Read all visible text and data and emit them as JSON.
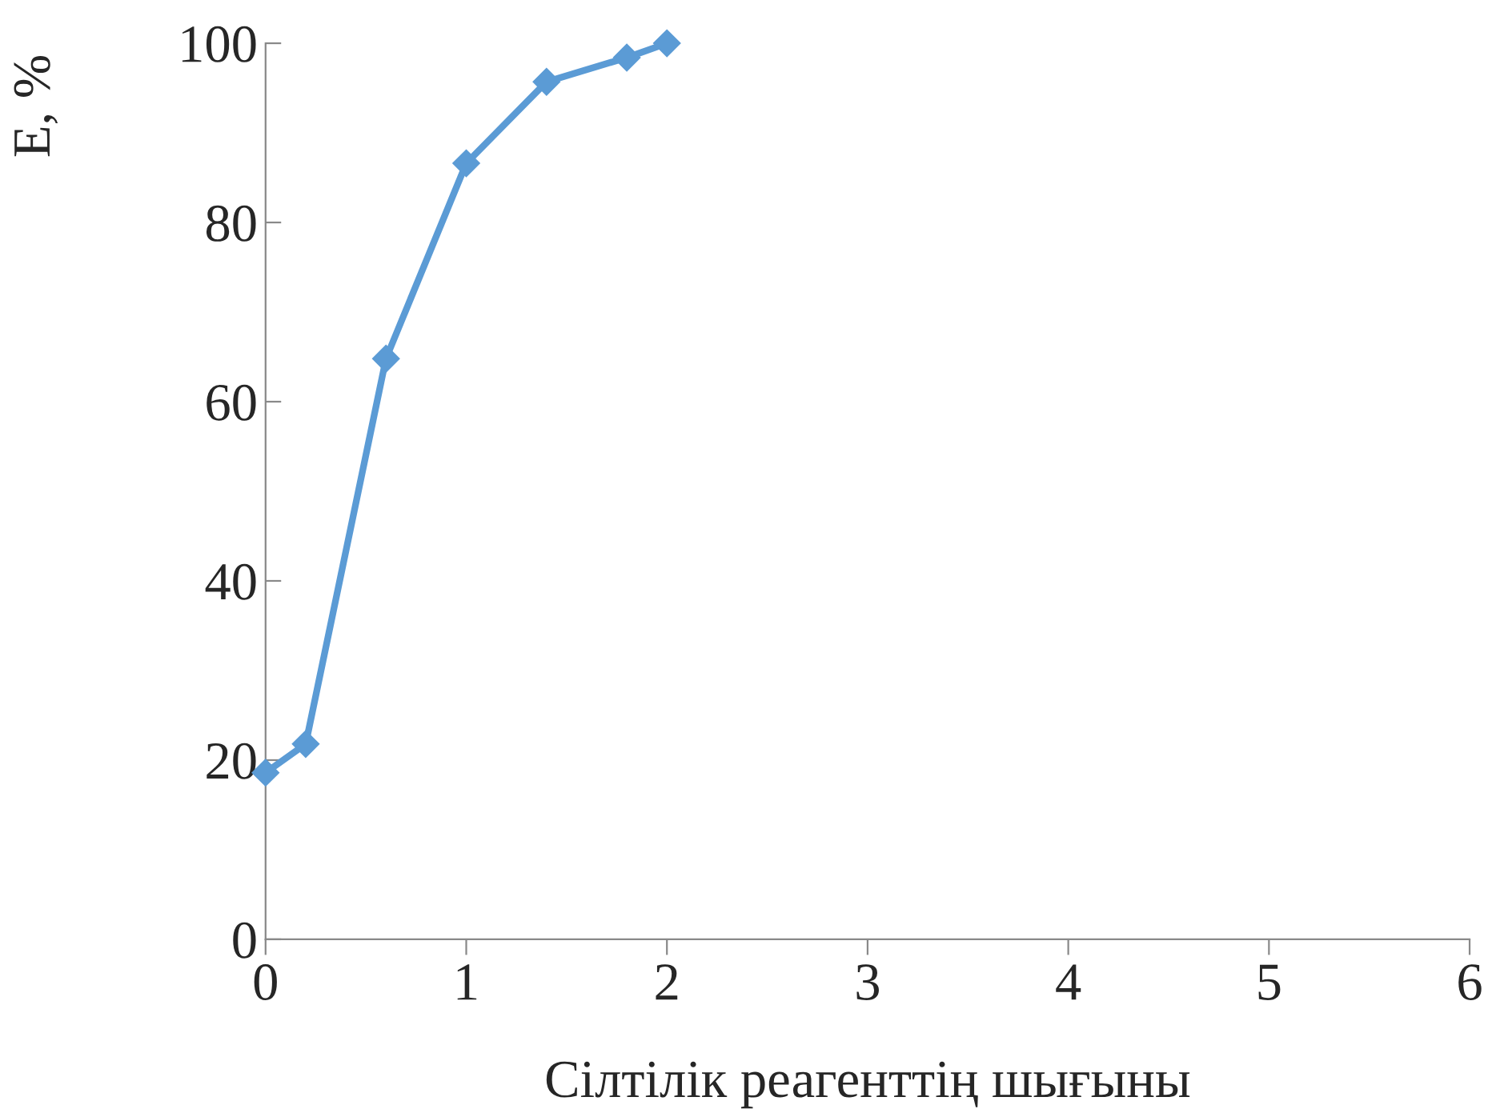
{
  "chart_data": {
    "type": "line",
    "xlabel": "Сілтілік реагенттің шығыны",
    "ylabel": "E, %",
    "x": [
      0,
      0.2,
      0.6,
      1.0,
      1.4,
      1.8,
      2.0
    ],
    "series": [
      {
        "color": "#5b9bd5",
        "values": [
          18.6,
          21.8,
          64.8,
          86.6,
          95.7,
          98.4,
          100
        ]
      }
    ],
    "xlim": [
      0,
      6
    ],
    "xticks": [
      0,
      1,
      2,
      3,
      4,
      5,
      6
    ],
    "ylim": [
      0,
      100
    ],
    "yticks": [
      0,
      20,
      40,
      60,
      80,
      100
    ],
    "marker": "diamond",
    "line_style": "solid",
    "grid": false,
    "legend": false
  }
}
